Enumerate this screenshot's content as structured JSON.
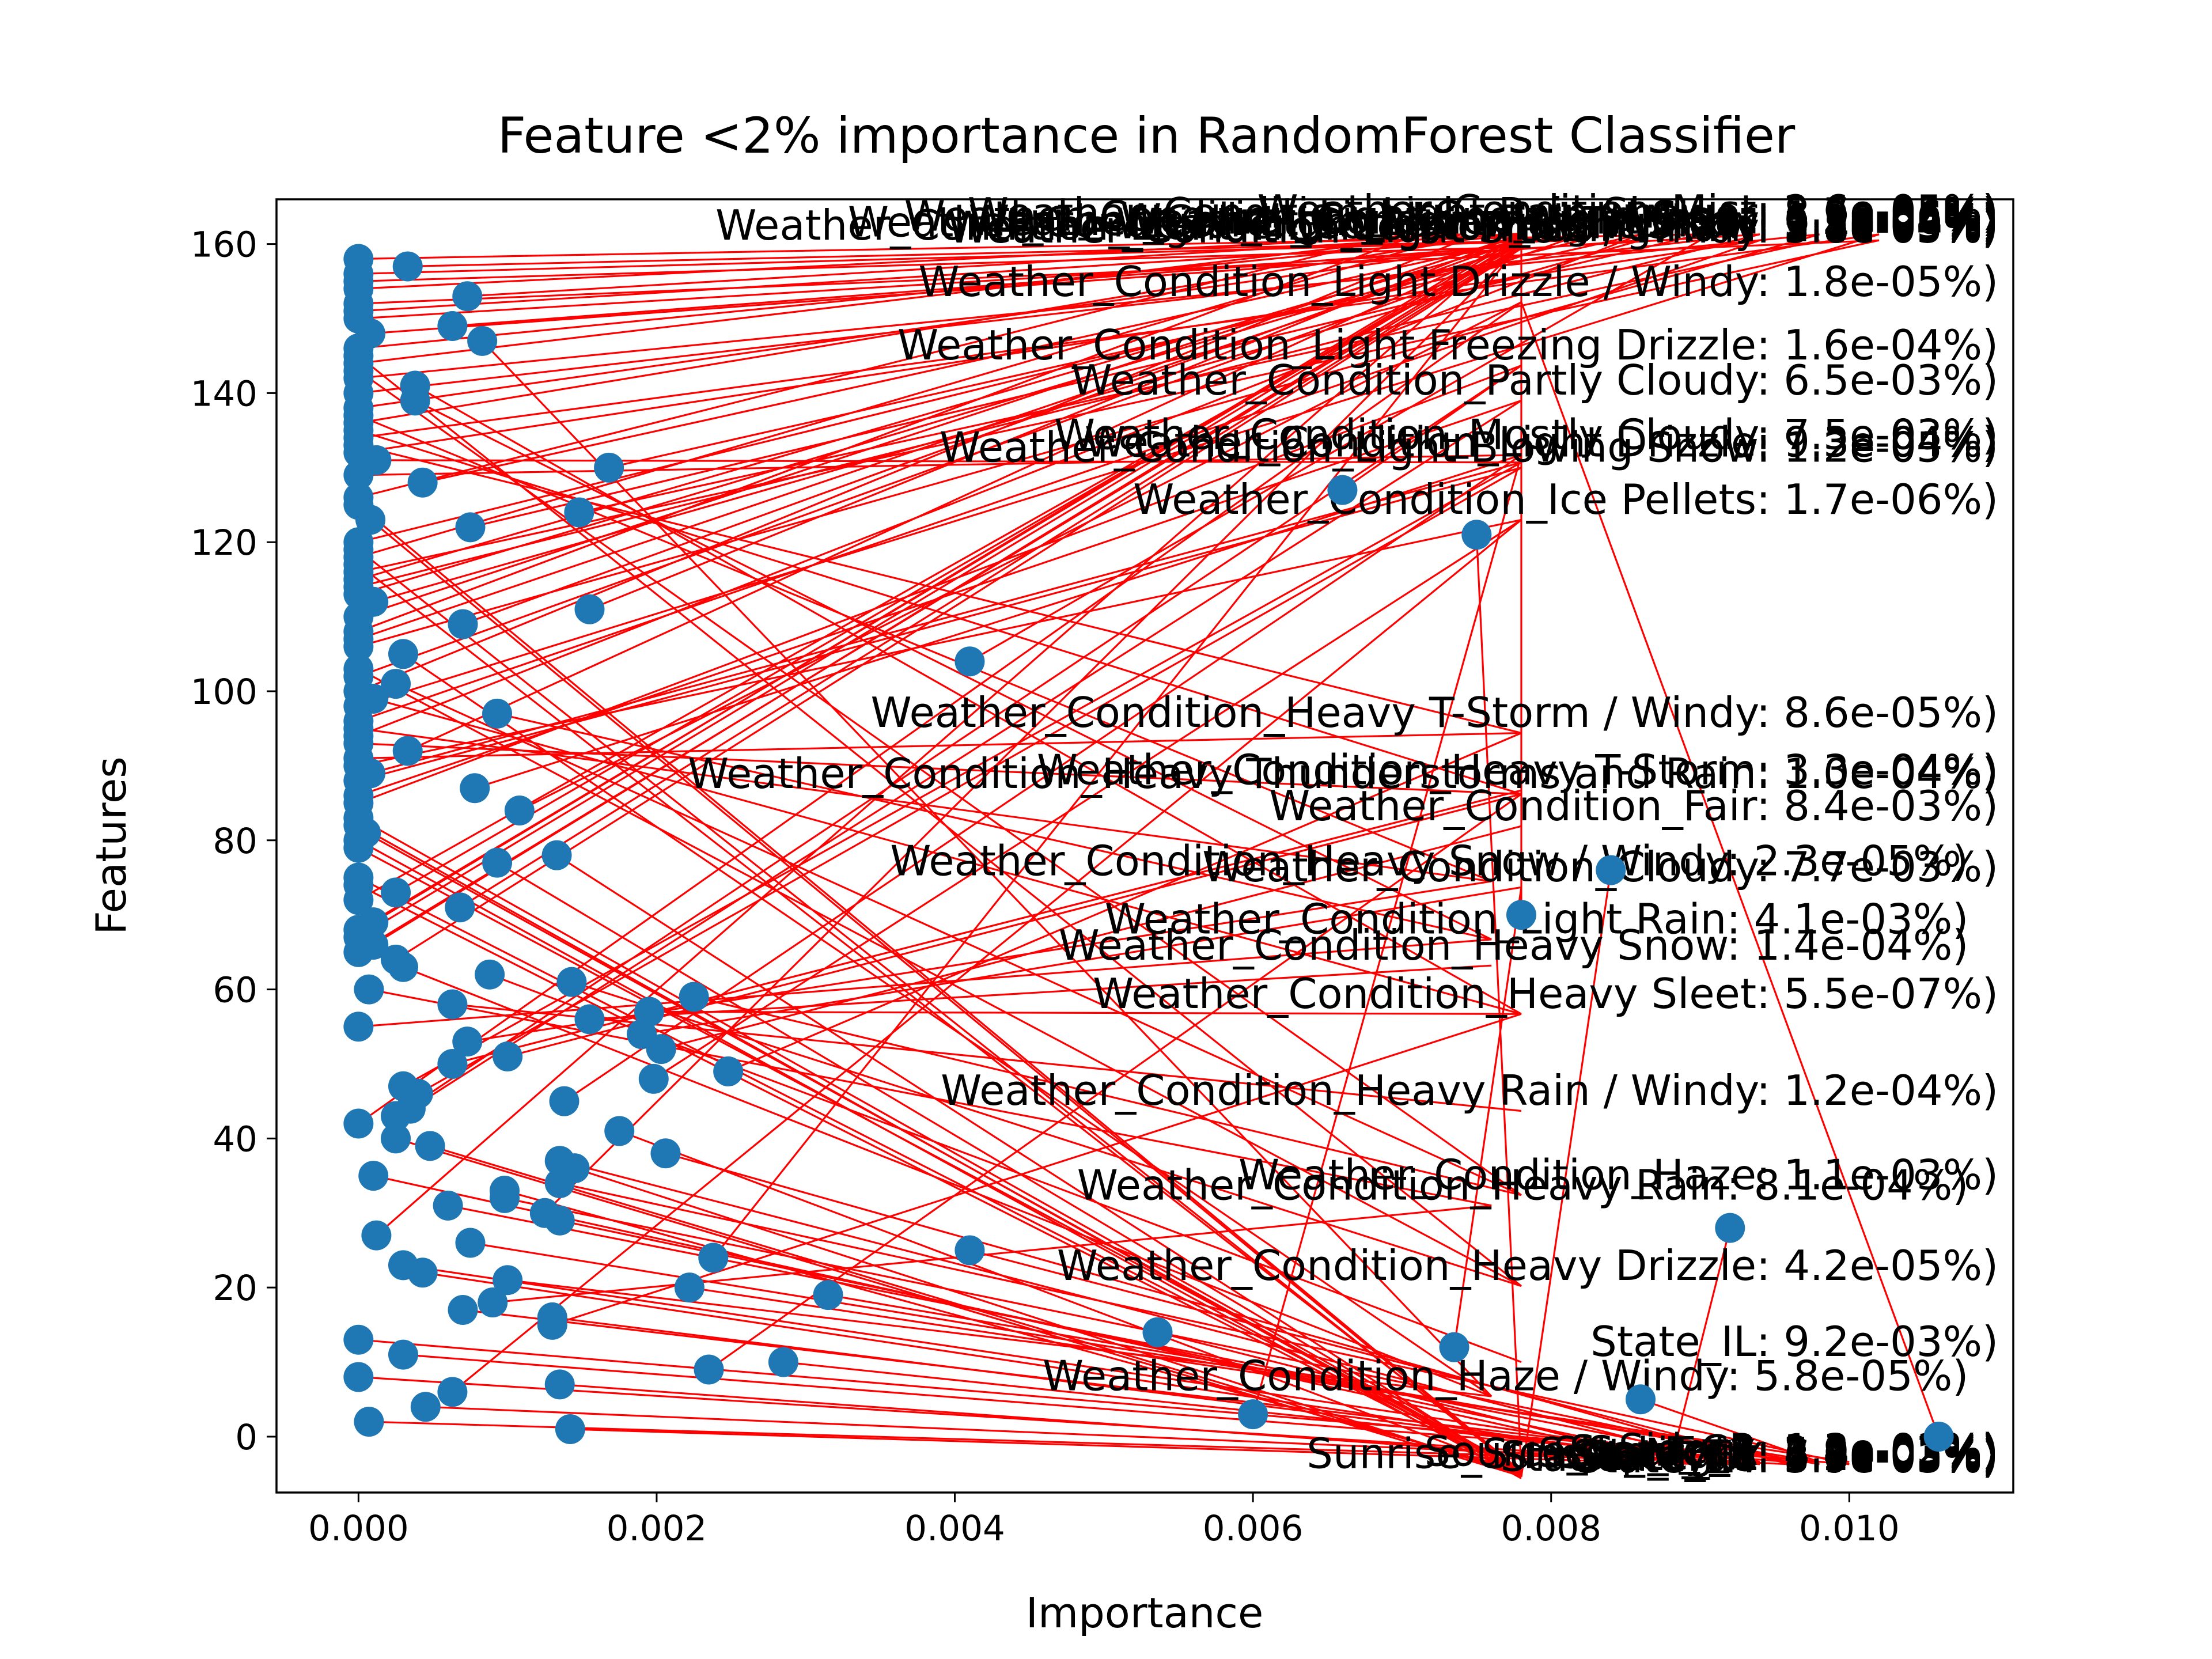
{
  "chart_data": {
    "type": "scatter",
    "title": "Feature <2% importance in RandomForest Classifier",
    "xlabel": "Importance",
    "ylabel": "Features",
    "xlim": [
      -0.00055,
      0.0111
    ],
    "ylim": [
      -7.5,
      166
    ],
    "xticks": [
      "0.000",
      "0.002",
      "0.004",
      "0.006",
      "0.008",
      "0.010"
    ],
    "xtick_values": [
      0.0,
      0.002,
      0.004,
      0.006,
      0.008,
      0.01
    ],
    "yticks": [
      "0",
      "20",
      "40",
      "60",
      "80",
      "100",
      "120",
      "140",
      "160"
    ],
    "ytick_values": [
      0,
      20,
      40,
      60,
      80,
      100,
      120,
      140,
      160
    ],
    "grid": false,
    "marker_color": "#1f77b4",
    "line_color": "#ff0000",
    "points": [
      [
        0.0106,
        0
      ],
      [
        0.00142,
        1
      ],
      [
        7e-05,
        2
      ],
      [
        0.006,
        3
      ],
      [
        0.00045,
        4
      ],
      [
        0.0086,
        5
      ],
      [
        0.00063,
        6
      ],
      [
        0.00135,
        7
      ],
      [
        0.0,
        8
      ],
      [
        0.00235,
        9
      ],
      [
        0.00285,
        10
      ],
      [
        0.0003,
        11
      ],
      [
        0.00735,
        12
      ],
      [
        0.0,
        13
      ],
      [
        0.00536,
        14
      ],
      [
        0.0013,
        15
      ],
      [
        0.0013,
        16
      ],
      [
        0.0007,
        17
      ],
      [
        0.0009,
        18
      ],
      [
        0.00315,
        19
      ],
      [
        0.00222,
        20
      ],
      [
        0.001,
        21
      ],
      [
        0.00043,
        22
      ],
      [
        0.0003,
        23
      ],
      [
        0.00238,
        24
      ],
      [
        0.0041,
        25
      ],
      [
        0.00075,
        26
      ],
      [
        0.00012,
        27
      ],
      [
        0.0092,
        28
      ],
      [
        0.00135,
        29
      ],
      [
        0.00125,
        30
      ],
      [
        0.0006,
        31
      ],
      [
        0.00098,
        32
      ],
      [
        0.00098,
        33
      ],
      [
        0.00135,
        34
      ],
      [
        0.0001,
        35
      ],
      [
        0.00145,
        36
      ],
      [
        0.00135,
        37
      ],
      [
        0.00206,
        38
      ],
      [
        0.00048,
        39
      ],
      [
        0.00025,
        40
      ],
      [
        0.00175,
        41
      ],
      [
        0.0,
        42
      ],
      [
        0.00025,
        43
      ],
      [
        0.00035,
        44
      ],
      [
        0.00138,
        45
      ],
      [
        0.0004,
        46
      ],
      [
        0.0003,
        47
      ],
      [
        0.00198,
        48
      ],
      [
        0.00248,
        49
      ],
      [
        0.00063,
        50
      ],
      [
        0.001,
        51
      ],
      [
        0.00203,
        52
      ],
      [
        0.00073,
        53
      ],
      [
        0.0019,
        54
      ],
      [
        0.0,
        55
      ],
      [
        0.00155,
        56
      ],
      [
        0.00195,
        57
      ],
      [
        0.00063,
        58
      ],
      [
        0.00225,
        59
      ],
      [
        7e-05,
        60
      ],
      [
        0.00143,
        61
      ],
      [
        0.00088,
        62
      ],
      [
        0.0003,
        63
      ],
      [
        0.00025,
        64
      ],
      [
        0.0,
        65
      ],
      [
        0.0001,
        66
      ],
      [
        0.0,
        67
      ],
      [
        0.0,
        68
      ],
      [
        0.0001,
        69
      ],
      [
        0.0078,
        70
      ],
      [
        0.00068,
        71
      ],
      [
        0.0,
        72
      ],
      [
        0.00025,
        73
      ],
      [
        0.0,
        74
      ],
      [
        0.0,
        75
      ],
      [
        0.0084,
        76
      ],
      [
        0.00093,
        77
      ],
      [
        0.00133,
        78
      ],
      [
        0.0,
        79
      ],
      [
        0.0,
        80
      ],
      [
        5e-05,
        81
      ],
      [
        0.0,
        82
      ],
      [
        0.0,
        83
      ],
      [
        0.00108,
        84
      ],
      [
        0.0,
        85
      ],
      [
        0.0,
        86
      ],
      [
        0.00078,
        87
      ],
      [
        0.0,
        88
      ],
      [
        8e-05,
        89
      ],
      [
        0.0,
        90
      ],
      [
        0.0,
        91
      ],
      [
        0.00033,
        92
      ],
      [
        0.0,
        93
      ],
      [
        0.0,
        94
      ],
      [
        0.0,
        95
      ],
      [
        0.0,
        96
      ],
      [
        0.00093,
        97
      ],
      [
        0.0,
        98
      ],
      [
        0.0001,
        99
      ],
      [
        0.0,
        100
      ],
      [
        0.00025,
        101
      ],
      [
        0.0,
        102
      ],
      [
        0.0,
        103
      ],
      [
        0.0041,
        104
      ],
      [
        0.0003,
        105
      ],
      [
        0.0,
        106
      ],
      [
        0.0,
        107
      ],
      [
        0.0,
        108
      ],
      [
        0.0007,
        109
      ],
      [
        0.0,
        110
      ],
      [
        0.00155,
        111
      ],
      [
        0.0001,
        112
      ],
      [
        0.0,
        113
      ],
      [
        0.0,
        114
      ],
      [
        0.0,
        115
      ],
      [
        0.0,
        116
      ],
      [
        0.0,
        117
      ],
      [
        0.0,
        118
      ],
      [
        0.0,
        119
      ],
      [
        0.0,
        120
      ],
      [
        0.0075,
        121
      ],
      [
        0.00075,
        122
      ],
      [
        8e-05,
        123
      ],
      [
        0.00148,
        124
      ],
      [
        0.0,
        125
      ],
      [
        0.0,
        126
      ],
      [
        0.0066,
        127
      ],
      [
        0.00043,
        128
      ],
      [
        0.0,
        129
      ],
      [
        0.00168,
        130
      ],
      [
        0.00012,
        131
      ],
      [
        0.0,
        132
      ],
      [
        0.0,
        133
      ],
      [
        0.0,
        134
      ],
      [
        0.0,
        135
      ],
      [
        0.0,
        136
      ],
      [
        0.0,
        137
      ],
      [
        0.0,
        138
      ],
      [
        0.00038,
        139
      ],
      [
        0.0,
        140
      ],
      [
        0.00038,
        141
      ],
      [
        0.0,
        142
      ],
      [
        0.0,
        143
      ],
      [
        0.0,
        144
      ],
      [
        0.0,
        145
      ],
      [
        0.0,
        146
      ],
      [
        0.00083,
        147
      ],
      [
        8e-05,
        148
      ],
      [
        0.00063,
        149
      ],
      [
        0.0,
        150
      ],
      [
        0.0,
        151
      ],
      [
        0.0,
        152
      ],
      [
        0.00073,
        153
      ],
      [
        0.0,
        154
      ],
      [
        0.0,
        155
      ],
      [
        0.0,
        156
      ],
      [
        0.00033,
        157
      ],
      [
        0.0,
        158
      ]
    ],
    "annotations": [
      {
        "text": "Weather_Condition_Light Drizzle / Windy: 1.8e-05%)",
        "ax": 0.011,
        "ay": 153
      },
      {
        "text": "Weather_Condition_Light Freezing Drizzle: 1.6e-04%)",
        "ax": 0.011,
        "ay": 144.5
      },
      {
        "text": "Weather_Condition_Partly Cloudy: 6.5e-03%)",
        "ax": 0.011,
        "ay": 139.8
      },
      {
        "text": "Weather_Condition_Mostly Cloudy: 7.5e-03%)",
        "ax": 0.011,
        "ay": 132.5
      },
      {
        "text": "Weather_Condition_Light Blowing Snow: 1.2e-05%)",
        "ax": 0.011,
        "ay": 130.8
      },
      {
        "text": "Weather_Condition_Light Drizzle: 9.3e-04%)",
        "ax": 0.011,
        "ay": 131.5
      },
      {
        "text": "Weather_Condition_Ice Pellets: 1.7e-06%)",
        "ax": 0.011,
        "ay": 123.8
      },
      {
        "text": "Weather_Condition_Heavy T-Storm / Windy: 8.6e-05%)",
        "ax": 0.011,
        "ay": 95.2
      },
      {
        "text": "Weather_Condition_Heavy T-Storm: 3.3e-04%)",
        "ax": 0.011,
        "ay": 87.5
      },
      {
        "text": "Weather_Condition_Heavy Thunderstorms and Rain: 1.0e-04%)",
        "ax": 0.011,
        "ay": 87.0
      },
      {
        "text": "Weather_Condition_Fair: 8.4e-03%)",
        "ax": 0.011,
        "ay": 82.7
      },
      {
        "text": "Weather_Condition_Heavy Snow / Windy: 2.3e-05%)",
        "ax": 0.0108,
        "ay": 75.3
      },
      {
        "text": "Weather_Condition_Cloudy: 7.7e-03%)",
        "ax": 0.011,
        "ay": 74.5
      },
      {
        "text": "Weather_Condition_Light Rain: 4.1e-03%)",
        "ax": 0.0108,
        "ay": 67.5
      },
      {
        "text": "Weather_Condition_Heavy Snow: 1.4e-04%)",
        "ax": 0.0108,
        "ay": 64.0
      },
      {
        "text": "Weather_Condition_Heavy Sleet: 5.5e-07%)",
        "ax": 0.011,
        "ay": 57.5
      },
      {
        "text": "Weather_Condition_Heavy Rain / Windy: 1.2e-04%)",
        "ax": 0.011,
        "ay": 44.5
      },
      {
        "text": "Weather_Condition_Haze: 1.1e-03%)",
        "ax": 0.011,
        "ay": 33.2
      },
      {
        "text": "Weather_Condition_Heavy Rain: 8.1e-04%)",
        "ax": 0.0108,
        "ay": 31.8
      },
      {
        "text": "Weather_Condition_Heavy Drizzle: 4.2e-05%)",
        "ax": 0.011,
        "ay": 21.0
      },
      {
        "text": "State_IL: 9.2e-03%)",
        "ax": 0.011,
        "ay": 10.8
      },
      {
        "text": "Weather_Condition_Haze / Windy: 5.8e-05%)",
        "ax": 0.0108,
        "ay": 6.2
      }
    ],
    "top_cluster_labels": [
      {
        "text": "Weather_Condition_Light Snow / Windy: 3.8e-05%)",
        "ax": 0.011,
        "ay": 160.2
      },
      {
        "text": "Weather_Condition_Light Thunderstorms and Rain: 2.1e-04%)",
        "ax": 0.011,
        "ay": 160.6
      },
      {
        "text": "Weather_Condition_Light Rain with Thunder: 5.2e-04%)",
        "ax": 0.011,
        "ay": 161.0
      },
      {
        "text": "Weather_Condition_Light Sleet: 6.1e-06%)",
        "ax": 0.011,
        "ay": 161.4
      },
      {
        "text": "Weather_Condition_Light Snow and Sleet: 1.9e-06%)",
        "ax": 0.011,
        "ay": 161.8
      },
      {
        "text": "Weather_Condition_Light Rain Shower: 8.7e-05%)",
        "ax": 0.011,
        "ay": 162.2
      },
      {
        "text": "Weather_Condition_Mist: 2.6e-05%)",
        "ax": 0.011,
        "ay": 162.6
      },
      {
        "text": "Weather_Condition_Light Freezing Rain: 1.4e-05%)",
        "ax": 0.011,
        "ay": 160.4
      },
      {
        "text": "Weather_Condition_Light Snow: 3.3e-03%)",
        "ax": 0.011,
        "ay": 160.8
      },
      {
        "text": "Weather_Condition_Light Rain / Windy: 1.5e-04%)",
        "ax": 0.011,
        "ay": 161.2
      }
    ],
    "bottom_cluster_labels": [
      {
        "text": "Sunrise_Sunset_Night: 4.4e-03%)",
        "ax": 0.011,
        "ay": -4.2
      },
      {
        "text": "State_CA: 1.1e-02%)",
        "ax": 0.011,
        "ay": -3.8
      },
      {
        "text": "Station_True: 5.3e-03%)",
        "ax": 0.011,
        "ay": -4.6
      },
      {
        "text": "Stop_True: 2.4e-03%)",
        "ax": 0.011,
        "ay": -4.0
      },
      {
        "text": "State_TX: 6.8e-03%)",
        "ax": 0.011,
        "ay": -4.4
      },
      {
        "text": "Side_R: 1.3e-03%)",
        "ax": 0.011,
        "ay": -3.6
      },
      {
        "text": "State_NY: 3.9e-03%)",
        "ax": 0.011,
        "ay": -4.8
      },
      {
        "text": "Severity_2: 5.8e-03%)",
        "ax": 0.011,
        "ay": -4.1
      },
      {
        "text": "State_FL: 7.2e-03%)",
        "ax": 0.011,
        "ay": -4.5
      },
      {
        "text": "Source_Source1: 2.9e-03%)",
        "ax": 0.011,
        "ay": -3.9
      }
    ]
  }
}
